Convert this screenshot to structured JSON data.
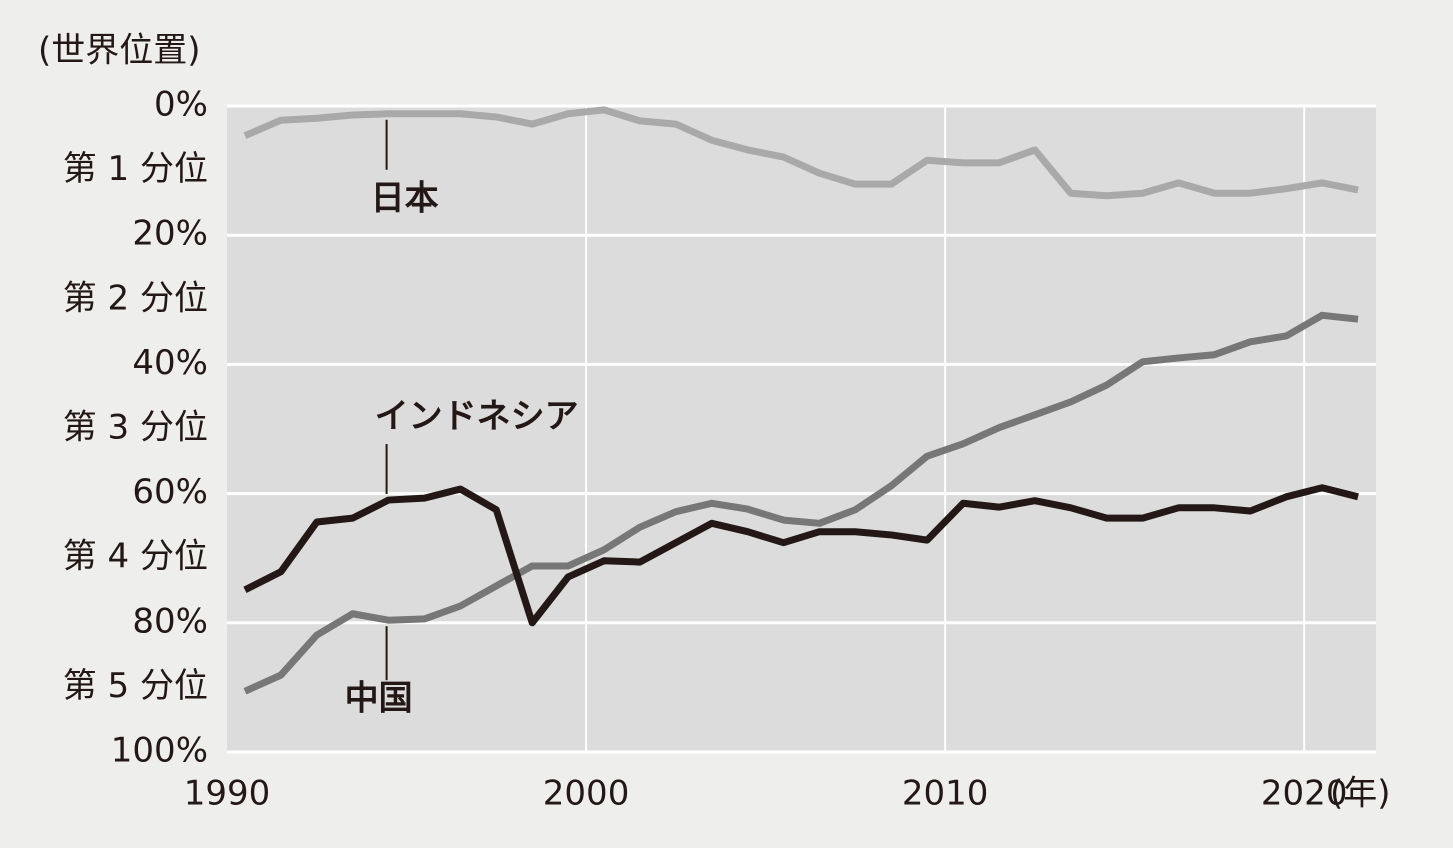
{
  "chart_data": {
    "type": "line",
    "y_label": "(世界位置)",
    "x_unit": "(年)",
    "x": [
      1990.5,
      1991.5,
      1992.5,
      1993.5,
      1994.5,
      1995.5,
      1996.5,
      1997.5,
      1998.5,
      1999.5,
      2000.5,
      2001.5,
      2002.5,
      2003.5,
      2004.5,
      2005.5,
      2006.5,
      2007.5,
      2008.5,
      2009.5,
      2010.5,
      2011.5,
      2012.5,
      2013.5,
      2014.5,
      2015.5,
      2016.5,
      2017.5,
      2018.5,
      2019.5,
      2020.5,
      2021.5
    ],
    "series": [
      {
        "name": "日本",
        "color": "#a9a9a9",
        "values": [
          4.6,
          2.2,
          1.9,
          1.4,
          1.2,
          1.2,
          1.2,
          1.7,
          2.8,
          1.2,
          0.6,
          2.3,
          2.8,
          5.3,
          6.8,
          7.9,
          10.4,
          12.1,
          12.1,
          8.4,
          8.8,
          8.8,
          6.8,
          13.5,
          13.9,
          13.5,
          11.9,
          13.5,
          13.5,
          12.8,
          11.9,
          13.0
        ]
      },
      {
        "name": "中国",
        "color": "#777777",
        "values": [
          90.6,
          88.1,
          81.9,
          78.6,
          79.6,
          79.4,
          77.4,
          74.3,
          71.2,
          71.2,
          68.7,
          65.2,
          62.8,
          61.5,
          62.4,
          64.1,
          64.6,
          62.5,
          58.8,
          54.2,
          52.3,
          49.8,
          47.8,
          45.8,
          43.2,
          39.6,
          39.0,
          38.5,
          36.5,
          35.6,
          32.4,
          33.0
        ]
      },
      {
        "name": "インドネシア",
        "color": "#231815",
        "values": [
          74.9,
          72.1,
          64.4,
          63.8,
          61.0,
          60.7,
          59.3,
          62.5,
          80.0,
          72.9,
          70.4,
          70.6,
          67.6,
          64.6,
          65.9,
          67.6,
          65.9,
          65.9,
          66.4,
          67.2,
          61.5,
          62.1,
          61.1,
          62.2,
          63.8,
          63.8,
          62.2,
          62.2,
          62.7,
          60.5,
          59.1,
          60.5
        ]
      }
    ],
    "xlim": [
      1990,
      2022
    ],
    "xticks": [
      1990,
      2000,
      2010,
      2020
    ],
    "ylim": [
      0,
      100
    ],
    "y_reversed": true,
    "yticks": [
      {
        "value": 0,
        "label": "0%"
      },
      {
        "value": 20,
        "label": "20%"
      },
      {
        "value": 40,
        "label": "40%"
      },
      {
        "value": 60,
        "label": "60%"
      },
      {
        "value": 80,
        "label": "80%"
      },
      {
        "value": 100,
        "label": "100%"
      }
    ],
    "band_labels": [
      {
        "value": 10,
        "label": "第 1 分位"
      },
      {
        "value": 30,
        "label": "第 2 分位"
      },
      {
        "value": 50,
        "label": "第 3 分位"
      },
      {
        "value": 70,
        "label": "第 4 分位"
      },
      {
        "value": 90,
        "label": "第 5 分位"
      }
    ],
    "grid": true,
    "plot_color": "#dcdcdc"
  }
}
